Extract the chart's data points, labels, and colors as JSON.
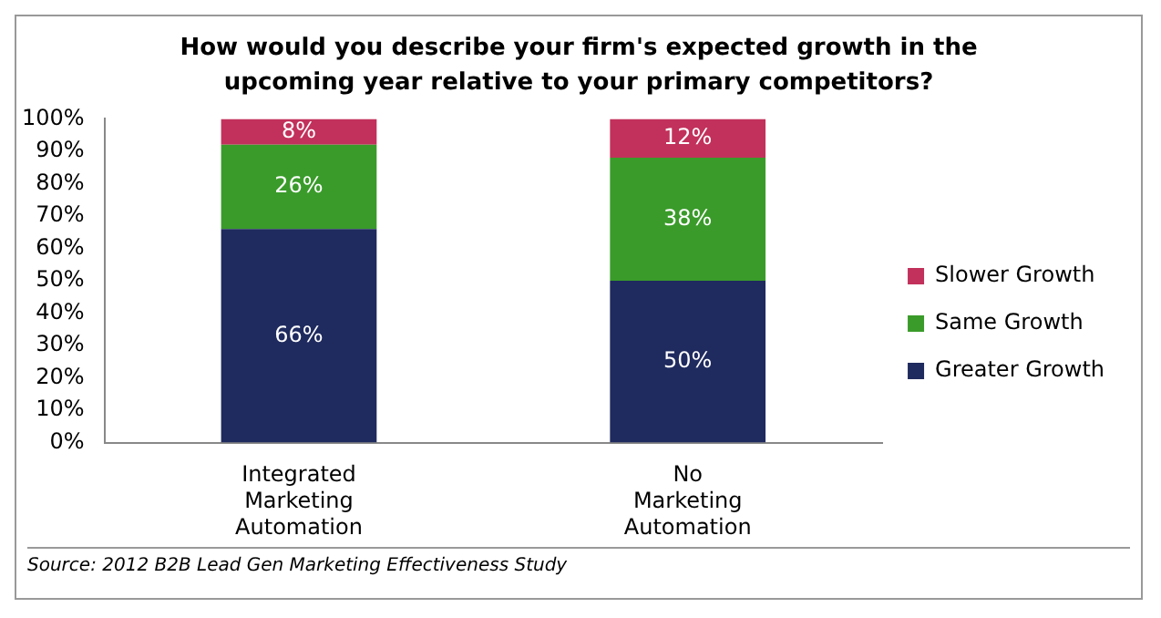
{
  "chart_data": {
    "type": "bar",
    "title": "How would you describe your firm's expected growth in the upcoming year relative to your primary competitors?",
    "categories": [
      "Integrated Marketing Automation",
      "No Marketing Automation"
    ],
    "stacked": true,
    "series": [
      {
        "name": "Greater Growth",
        "color": "#1f2a5e",
        "values": [
          66,
          50
        ],
        "value_labels": [
          "66%",
          "50%"
        ]
      },
      {
        "name": "Same Growth",
        "color": "#3a9b2a",
        "values": [
          26,
          38
        ],
        "value_labels": [
          "26%",
          "38%"
        ]
      },
      {
        "name": "Slower Growth",
        "color": "#c2315b",
        "values": [
          8,
          12
        ],
        "value_labels": [
          "8%",
          "12%"
        ]
      }
    ],
    "ylim": [
      0,
      100
    ],
    "yticks": [
      {
        "value": 0,
        "label": "0%"
      },
      {
        "value": 10,
        "label": "10%"
      },
      {
        "value": 20,
        "label": "20%"
      },
      {
        "value": 30,
        "label": "30%"
      },
      {
        "value": 40,
        "label": "40%"
      },
      {
        "value": 50,
        "label": "50%"
      },
      {
        "value": 60,
        "label": "60%"
      },
      {
        "value": 70,
        "label": "70%"
      },
      {
        "value": 80,
        "label": "80%"
      },
      {
        "value": 90,
        "label": "90%"
      },
      {
        "value": 100,
        "label": "100%"
      }
    ],
    "legend": "right",
    "annotations": [
      "Source: 2012 B2B Lead Gen Marketing Effectiveness Study"
    ]
  }
}
